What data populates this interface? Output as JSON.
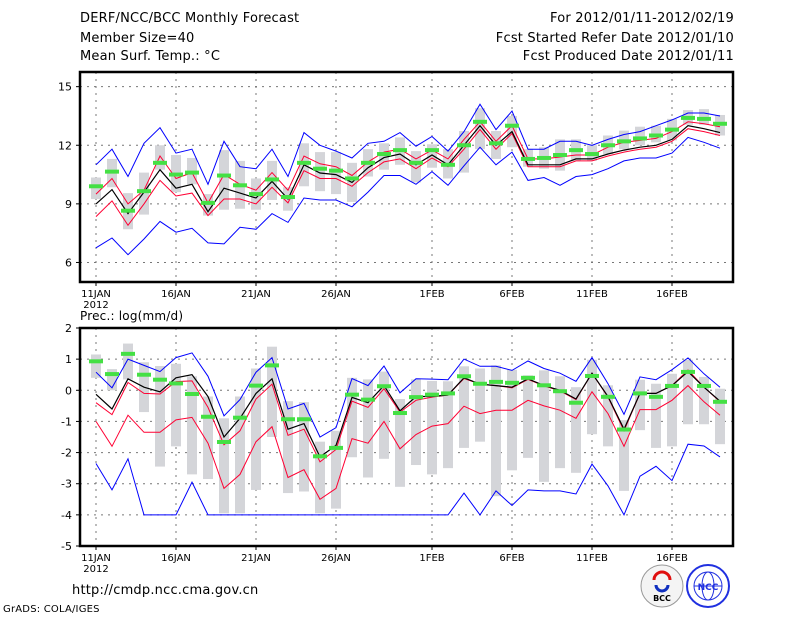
{
  "header": {
    "title": "DERF/NCC/BCC Monthly Forecast",
    "member_size": "Member Size=40",
    "variable": "Mean Surf. Temp.: °C",
    "period": "For 2012/01/11-2012/02/19",
    "started": "Fcst Started Refer Date 2012/01/10",
    "produced": "Fcst Produced Date 2012/01/11"
  },
  "footer": {
    "url": "http://cmdp.ncc.cma.gov.cn",
    "credit": "GrADS: COLA/IGES",
    "logos": [
      "BCC",
      "NCC"
    ]
  },
  "colors": {
    "max_min": "#0000ff",
    "spread": "#ff0033",
    "mean": "#000000",
    "marker": "#44e044",
    "bar": "#d4d5d9",
    "grid": "#777777"
  },
  "chart_data": [
    {
      "type": "line",
      "title": "Mean Surf. Temp.: °C",
      "x_start": "2012-01-11",
      "xtick_days": [
        0,
        5,
        10,
        15,
        21,
        26,
        31,
        36
      ],
      "xtick_labels": [
        "11JAN",
        "16JAN",
        "21JAN",
        "26JAN",
        "1FEB",
        "6FEB",
        "11FEB",
        "16FEB"
      ],
      "year_label": "2012",
      "yticks": [
        6,
        9,
        12,
        15
      ],
      "ytick_labels": [
        "6",
        "9",
        "12",
        "15"
      ],
      "ylim": [
        5,
        15.75
      ],
      "grid": true,
      "series": [
        {
          "name": "max",
          "values": [
            11.0,
            11.8,
            10.4,
            12.1,
            12.9,
            11.6,
            11.8,
            10.0,
            12.2,
            10.9,
            10.8,
            11.8,
            10.4,
            12.65,
            12.0,
            11.7,
            11.35,
            12.1,
            12.2,
            12.65,
            11.95,
            12.45,
            11.7,
            12.7,
            14.1,
            12.8,
            13.75,
            11.8,
            11.8,
            12.2,
            12.2,
            12.0,
            12.3,
            12.55,
            12.7,
            13.0,
            13.3,
            13.65,
            13.65,
            13.5
          ]
        },
        {
          "name": "min",
          "values": [
            6.75,
            7.25,
            6.4,
            7.2,
            8.1,
            7.55,
            7.75,
            7.0,
            6.95,
            7.8,
            7.7,
            8.5,
            8.05,
            9.3,
            9.2,
            9.2,
            8.85,
            9.6,
            10.45,
            10.45,
            10.0,
            10.65,
            9.95,
            10.95,
            11.9,
            11.0,
            11.65,
            10.2,
            10.35,
            9.95,
            10.4,
            10.5,
            10.8,
            11.2,
            11.35,
            11.35,
            11.6,
            12.4,
            12.15,
            11.85
          ]
        },
        {
          "name": "spread-upper",
          "values": [
            9.5,
            10.3,
            9.0,
            9.7,
            11.45,
            10.3,
            10.6,
            9.05,
            10.5,
            10.0,
            9.7,
            10.6,
            9.7,
            11.45,
            11.05,
            10.9,
            10.45,
            11.15,
            11.65,
            11.8,
            11.3,
            11.75,
            11.3,
            12.3,
            13.2,
            12.2,
            13.0,
            11.3,
            11.3,
            11.4,
            11.5,
            11.5,
            11.9,
            12.15,
            12.25,
            12.35,
            12.7,
            13.2,
            13.1,
            12.95
          ]
        },
        {
          "name": "spread-lower",
          "values": [
            8.35,
            9.15,
            7.9,
            9.0,
            10.2,
            9.4,
            9.55,
            8.4,
            9.25,
            9.25,
            9.0,
            9.85,
            9.05,
            10.7,
            10.3,
            10.3,
            9.9,
            10.6,
            11.15,
            11.3,
            10.8,
            11.35,
            10.9,
            11.8,
            12.8,
            11.8,
            12.6,
            10.9,
            10.9,
            10.9,
            11.2,
            11.2,
            11.45,
            11.65,
            11.8,
            11.9,
            12.2,
            12.85,
            12.7,
            12.5
          ]
        },
        {
          "name": "mean",
          "values": [
            9.0,
            9.73,
            8.5,
            9.6,
            10.75,
            9.8,
            10.0,
            8.6,
            9.8,
            9.55,
            9.3,
            10.15,
            9.25,
            11.0,
            10.58,
            10.5,
            10.1,
            10.85,
            11.37,
            11.55,
            11.0,
            11.5,
            11.0,
            12.0,
            13.0,
            12.0,
            12.7,
            11.0,
            11.0,
            11.0,
            11.3,
            11.3,
            11.55,
            11.75,
            11.9,
            12.0,
            12.3,
            13.0,
            12.85,
            12.65
          ]
        },
        {
          "name": "marker",
          "values": [
            9.9,
            10.65,
            8.65,
            9.65,
            11.1,
            10.5,
            10.6,
            9.05,
            10.45,
            9.95,
            9.5,
            10.25,
            9.35,
            11.1,
            10.8,
            10.7,
            10.3,
            11.1,
            11.55,
            11.75,
            11.1,
            11.75,
            11.0,
            12.0,
            13.2,
            12.1,
            13.0,
            11.3,
            11.35,
            11.5,
            11.75,
            11.55,
            12.0,
            12.2,
            12.35,
            12.5,
            12.8,
            13.4,
            13.35,
            13.1
          ]
        },
        {
          "name": "bar-high",
          "values": [
            10.35,
            11.3,
            9.55,
            10.6,
            12.0,
            11.5,
            11.35,
            9.5,
            11.75,
            11.2,
            10.3,
            11.2,
            9.85,
            12.1,
            11.65,
            11.65,
            11.1,
            11.8,
            12.1,
            12.4,
            11.7,
            12.05,
            11.8,
            12.73,
            13.9,
            12.73,
            13.5,
            11.8,
            11.9,
            12.3,
            12.3,
            12.0,
            12.5,
            12.75,
            12.95,
            13.0,
            13.35,
            13.8,
            13.85,
            13.55
          ]
        },
        {
          "name": "bar-low",
          "values": [
            9.25,
            9.85,
            7.7,
            8.45,
            10.75,
            9.6,
            10.0,
            8.4,
            8.7,
            8.75,
            8.7,
            9.2,
            8.65,
            9.9,
            9.65,
            9.5,
            9.1,
            10.4,
            10.75,
            11.0,
            10.1,
            10.85,
            10.3,
            10.6,
            11.8,
            11.3,
            11.9,
            10.9,
            10.8,
            10.7,
            11.2,
            11.2,
            11.55,
            11.8,
            12.0,
            12.15,
            12.25,
            13.05,
            13.05,
            12.5
          ]
        }
      ]
    },
    {
      "type": "line",
      "title": "Prec.: log(mm/d)",
      "x_start": "2012-01-11",
      "xtick_days": [
        0,
        5,
        10,
        15,
        21,
        26,
        31,
        36
      ],
      "xtick_labels": [
        "11JAN",
        "16JAN",
        "21JAN",
        "26JAN",
        "1FEB",
        "6FEB",
        "11FEB",
        "16FEB"
      ],
      "year_label": "2012",
      "yticks": [
        -5,
        -4,
        -3,
        -2,
        -1,
        0,
        1,
        2
      ],
      "ytick_labels": [
        "-5",
        "-4",
        "-3",
        "-2",
        "-1",
        "0",
        "1",
        "2"
      ],
      "ylim": [
        -5,
        2
      ],
      "grid": true,
      "series": [
        {
          "name": "max",
          "values": [
            0.58,
            0.08,
            1.0,
            0.8,
            0.6,
            1.05,
            1.2,
            0.45,
            -0.82,
            -0.3,
            0.58,
            1.05,
            -0.6,
            -0.42,
            -1.5,
            -1.2,
            0.38,
            0.15,
            0.78,
            -0.08,
            0.37,
            0.36,
            0.34,
            1.0,
            0.77,
            0.77,
            0.64,
            0.94,
            0.7,
            0.55,
            0.29,
            1.05,
            0.21,
            -0.77,
            0.43,
            0.34,
            0.66,
            1.04,
            0.53,
            0.1
          ]
        },
        {
          "name": "min",
          "values": [
            -2.35,
            -3.2,
            -2.2,
            -4,
            -4,
            -4,
            -2.95,
            -4,
            -4,
            -4,
            -4,
            -4,
            -4,
            -4,
            -4,
            -4,
            -4,
            -4,
            -4,
            -4,
            -4,
            -4,
            -4,
            -3.3,
            -4,
            -3.23,
            -3.7,
            -3.2,
            -3.23,
            -3.23,
            -3.33,
            -2.37,
            -3.07,
            -4,
            -2.76,
            -2.44,
            -2.9,
            -1.73,
            -1.79,
            -2.14
          ]
        },
        {
          "name": "spread-upper",
          "values": [
            -0.4,
            -0.78,
            0.25,
            -0.1,
            -0.12,
            0.28,
            0.3,
            -0.55,
            -1.75,
            -1.3,
            -0.28,
            0.2,
            -1.45,
            -1.25,
            -2.3,
            -1.9,
            -0.35,
            -0.55,
            0.05,
            -0.7,
            -0.32,
            -0.22,
            -0.15,
            0.38,
            0.2,
            0.15,
            0.08,
            0.35,
            0.14,
            -0.02,
            -0.3,
            0.55,
            -0.22,
            -1.3,
            -0.1,
            -0.1,
            0.15,
            0.65,
            0.1,
            -0.37
          ]
        },
        {
          "name": "spread-lower",
          "values": [
            -1.0,
            -1.8,
            -0.8,
            -1.35,
            -1.35,
            -0.95,
            -0.87,
            -1.7,
            -3.15,
            -2.7,
            -1.65,
            -1.17,
            -2.8,
            -2.55,
            -3.5,
            -3.15,
            -1.55,
            -1.7,
            -1.0,
            -1.88,
            -1.42,
            -1.15,
            -1.07,
            -0.51,
            -0.75,
            -0.64,
            -0.64,
            -0.32,
            -0.5,
            -0.64,
            -0.9,
            -0.05,
            -0.75,
            -1.8,
            -0.62,
            -0.62,
            -0.32,
            0.15,
            -0.37,
            -0.8
          ]
        },
        {
          "name": "mean",
          "values": [
            -0.13,
            -0.6,
            0.37,
            0.1,
            -0.05,
            0.4,
            0.5,
            -0.2,
            -1.5,
            -0.9,
            -0.1,
            0.37,
            -1.25,
            -1.07,
            -2.14,
            -1.77,
            -0.23,
            -0.4,
            0.15,
            -0.66,
            -0.2,
            -0.2,
            -0.15,
            0.4,
            0.2,
            0.15,
            0.1,
            0.37,
            0.15,
            0.0,
            -0.28,
            0.55,
            -0.2,
            -1.25,
            -0.1,
            -0.1,
            0.15,
            0.6,
            0.1,
            -0.35
          ]
        },
        {
          "name": "marker",
          "values": [
            0.93,
            0.52,
            1.17,
            0.5,
            0.34,
            0.22,
            -0.12,
            -0.85,
            -1.66,
            -0.88,
            0.15,
            0.8,
            -0.93,
            -0.93,
            -2.12,
            -1.85,
            -0.14,
            -0.3,
            0.13,
            -0.73,
            -0.22,
            -0.14,
            -0.1,
            0.45,
            0.21,
            0.27,
            0.24,
            0.4,
            0.16,
            -0.03,
            -0.4,
            0.46,
            -0.21,
            -1.26,
            -0.1,
            -0.21,
            0.14,
            0.59,
            0.14,
            -0.37
          ]
        },
        {
          "name": "bar-high",
          "values": [
            1.15,
            0.68,
            1.5,
            0.9,
            0.78,
            0.85,
            0.45,
            -0.2,
            -0.9,
            -0.2,
            0.7,
            1.4,
            -0.35,
            -0.38,
            -1.65,
            -1.3,
            0.4,
            0.35,
            0.6,
            -0.28,
            0.35,
            0.3,
            0.29,
            0.77,
            0.7,
            0.8,
            0.66,
            0.48,
            0.64,
            0.45,
            0.1,
            0.98,
            0.16,
            -0.96,
            0.34,
            0.21,
            0.53,
            0.98,
            0.43,
            0.05
          ]
        },
        {
          "name": "bar-low",
          "values": [
            0.4,
            0.0,
            0.35,
            -0.7,
            -2.45,
            -1.8,
            -2.7,
            -2.85,
            -3.95,
            -3.95,
            -3.2,
            -1.5,
            -3.3,
            -3.25,
            -3.95,
            -3.8,
            -2.15,
            -2.8,
            -2.2,
            -3.1,
            -2.4,
            -2.7,
            -2.5,
            -1.85,
            -1.65,
            -3.4,
            -2.57,
            -2.17,
            -2.94,
            -2.5,
            -2.65,
            -1.41,
            -1.8,
            -3.23,
            -1.28,
            -1.85,
            -1.8,
            -1.09,
            -1.09,
            -1.73
          ]
        }
      ]
    }
  ]
}
